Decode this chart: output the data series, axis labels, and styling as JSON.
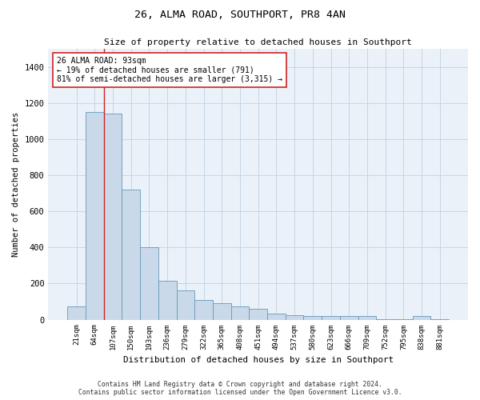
{
  "title_line1": "26, ALMA ROAD, SOUTHPORT, PR8 4AN",
  "title_line2": "Size of property relative to detached houses in Southport",
  "xlabel": "Distribution of detached houses by size in Southport",
  "ylabel": "Number of detached properties",
  "categories": [
    "21sqm",
    "64sqm",
    "107sqm",
    "150sqm",
    "193sqm",
    "236sqm",
    "279sqm",
    "322sqm",
    "365sqm",
    "408sqm",
    "451sqm",
    "494sqm",
    "537sqm",
    "580sqm",
    "623sqm",
    "666sqm",
    "709sqm",
    "752sqm",
    "795sqm",
    "838sqm",
    "881sqm"
  ],
  "values": [
    75,
    1150,
    1140,
    720,
    400,
    215,
    160,
    110,
    90,
    75,
    60,
    35,
    25,
    20,
    20,
    18,
    18,
    3,
    3,
    18,
    3
  ],
  "bar_color": "#c9d9ea",
  "bar_edge_color": "#6699bb",
  "grid_color": "#c5d5e5",
  "background_color": "#eaf1f8",
  "vline_color": "#cc2222",
  "annotation_text": "26 ALMA ROAD: 93sqm\n← 19% of detached houses are smaller (791)\n81% of semi-detached houses are larger (3,315) →",
  "ylim": [
    0,
    1500
  ],
  "yticks": [
    0,
    200,
    400,
    600,
    800,
    1000,
    1200,
    1400
  ],
  "footnote": "Contains HM Land Registry data © Crown copyright and database right 2024.\nContains public sector information licensed under the Open Government Licence v3.0."
}
